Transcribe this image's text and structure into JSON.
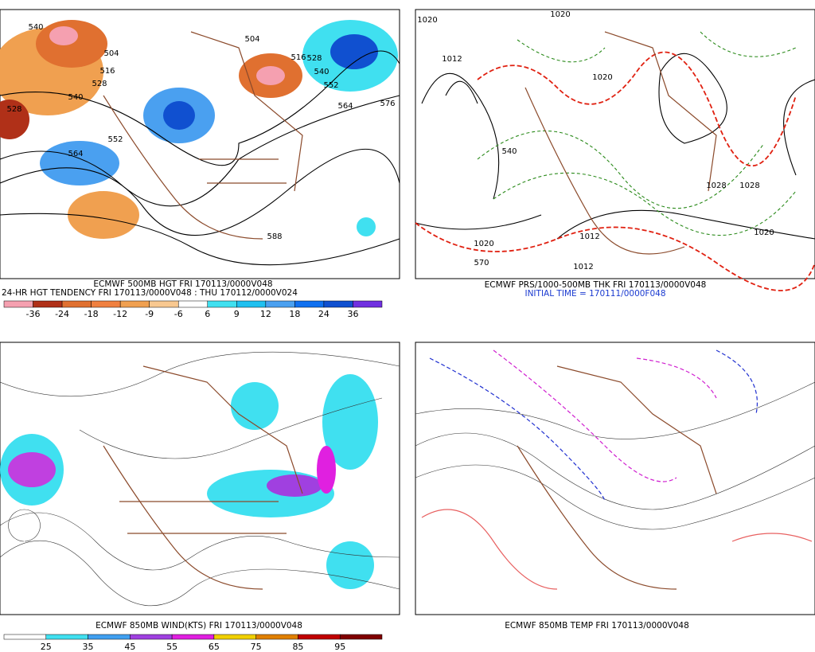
{
  "panels": [
    {
      "title_lines": [
        "ECMWF 500MB HGT FRI 170113/0000V048",
        "24-HR HGT TENDENCY FRI 170113/0000V048 : THU 170112/0000V024"
      ],
      "colorbar_labels": [
        "-36",
        "-24",
        "-18",
        "-12",
        "-9",
        "-6",
        "6",
        "9",
        "12",
        "18",
        "24",
        "36"
      ],
      "contour_labels": [
        "540",
        "504",
        "516",
        "528",
        "540",
        "528",
        "564",
        "552",
        "516",
        "528",
        "540",
        "504",
        "552",
        "564",
        "576",
        "588"
      ]
    },
    {
      "title_lines": [
        "ECMWF PRS/1000-500MB THK FRI 170113/0000V048",
        "INITIAL TIME = 170111/0000F048"
      ],
      "contour_labels": [
        "1020",
        "1020",
        "1012",
        "1020",
        "1028",
        "1020",
        "1012",
        "1012",
        "540",
        "570",
        "1028",
        "1020"
      ]
    },
    {
      "title_lines": [
        "ECMWF 850MB WIND(KTS) FRI 170113/0000V048"
      ],
      "colorbar_labels": [
        "25",
        "35",
        "45",
        "55",
        "65",
        "75",
        "85",
        "95"
      ]
    },
    {
      "title_lines": [
        "ECMWF 850MB TEMP FRI 170113/0000V048"
      ]
    }
  ]
}
